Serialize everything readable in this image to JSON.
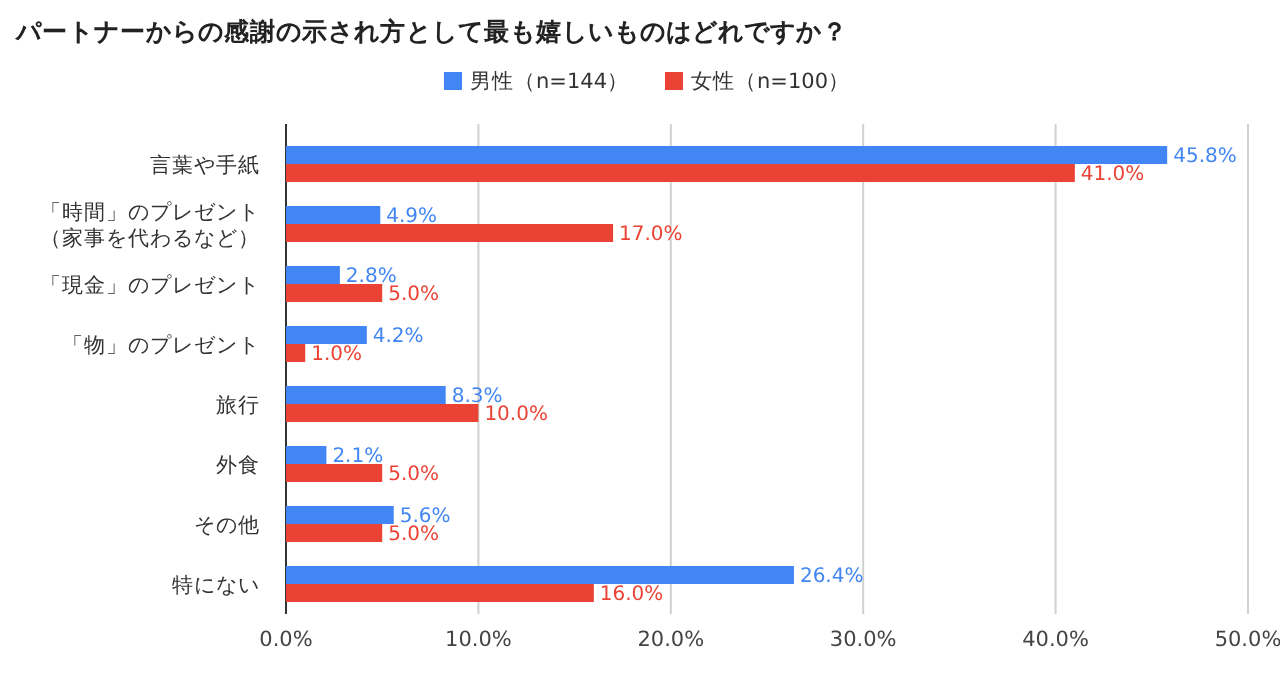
{
  "chart_data": {
    "type": "bar",
    "orientation": "horizontal",
    "title": "パートナーからの感謝の示され方として最も嬉しいものはどれですか？",
    "categories": [
      "言葉や手紙",
      "「時間」のプレゼント（家事を代わるなど）",
      "「現金」のプレゼント",
      "「物」のプレゼント",
      "旅行",
      "外食",
      "その他",
      "特にない"
    ],
    "series": [
      {
        "name": "男性（n=144）",
        "color": "#4285f4",
        "values": [
          45.8,
          4.9,
          2.8,
          4.2,
          8.3,
          2.1,
          5.6,
          26.4
        ],
        "value_labels": [
          "45.8%",
          "4.9%",
          "2.8%",
          "4.2%",
          "8.3%",
          "2.1%",
          "5.6%",
          "26.4%"
        ]
      },
      {
        "name": "女性（n=100）",
        "color": "#ea4335",
        "values": [
          41.0,
          17.0,
          5.0,
          1.0,
          10.0,
          5.0,
          5.0,
          16.0
        ],
        "value_labels": [
          "41.0%",
          "17.0%",
          "5.0%",
          "1.0%",
          "10.0%",
          "5.0%",
          "5.0%",
          "16.0%"
        ]
      }
    ],
    "xlim": [
      0,
      50
    ],
    "xticks": [
      {
        "value": 0,
        "label": "0.0%"
      },
      {
        "value": 10,
        "label": "10.0%"
      },
      {
        "value": 20,
        "label": "20.0%"
      },
      {
        "value": 30,
        "label": "30.0%"
      },
      {
        "value": 40,
        "label": "40.0%"
      },
      {
        "value": 50,
        "label": "50.0%"
      }
    ],
    "grid": "x",
    "legend": "top"
  }
}
